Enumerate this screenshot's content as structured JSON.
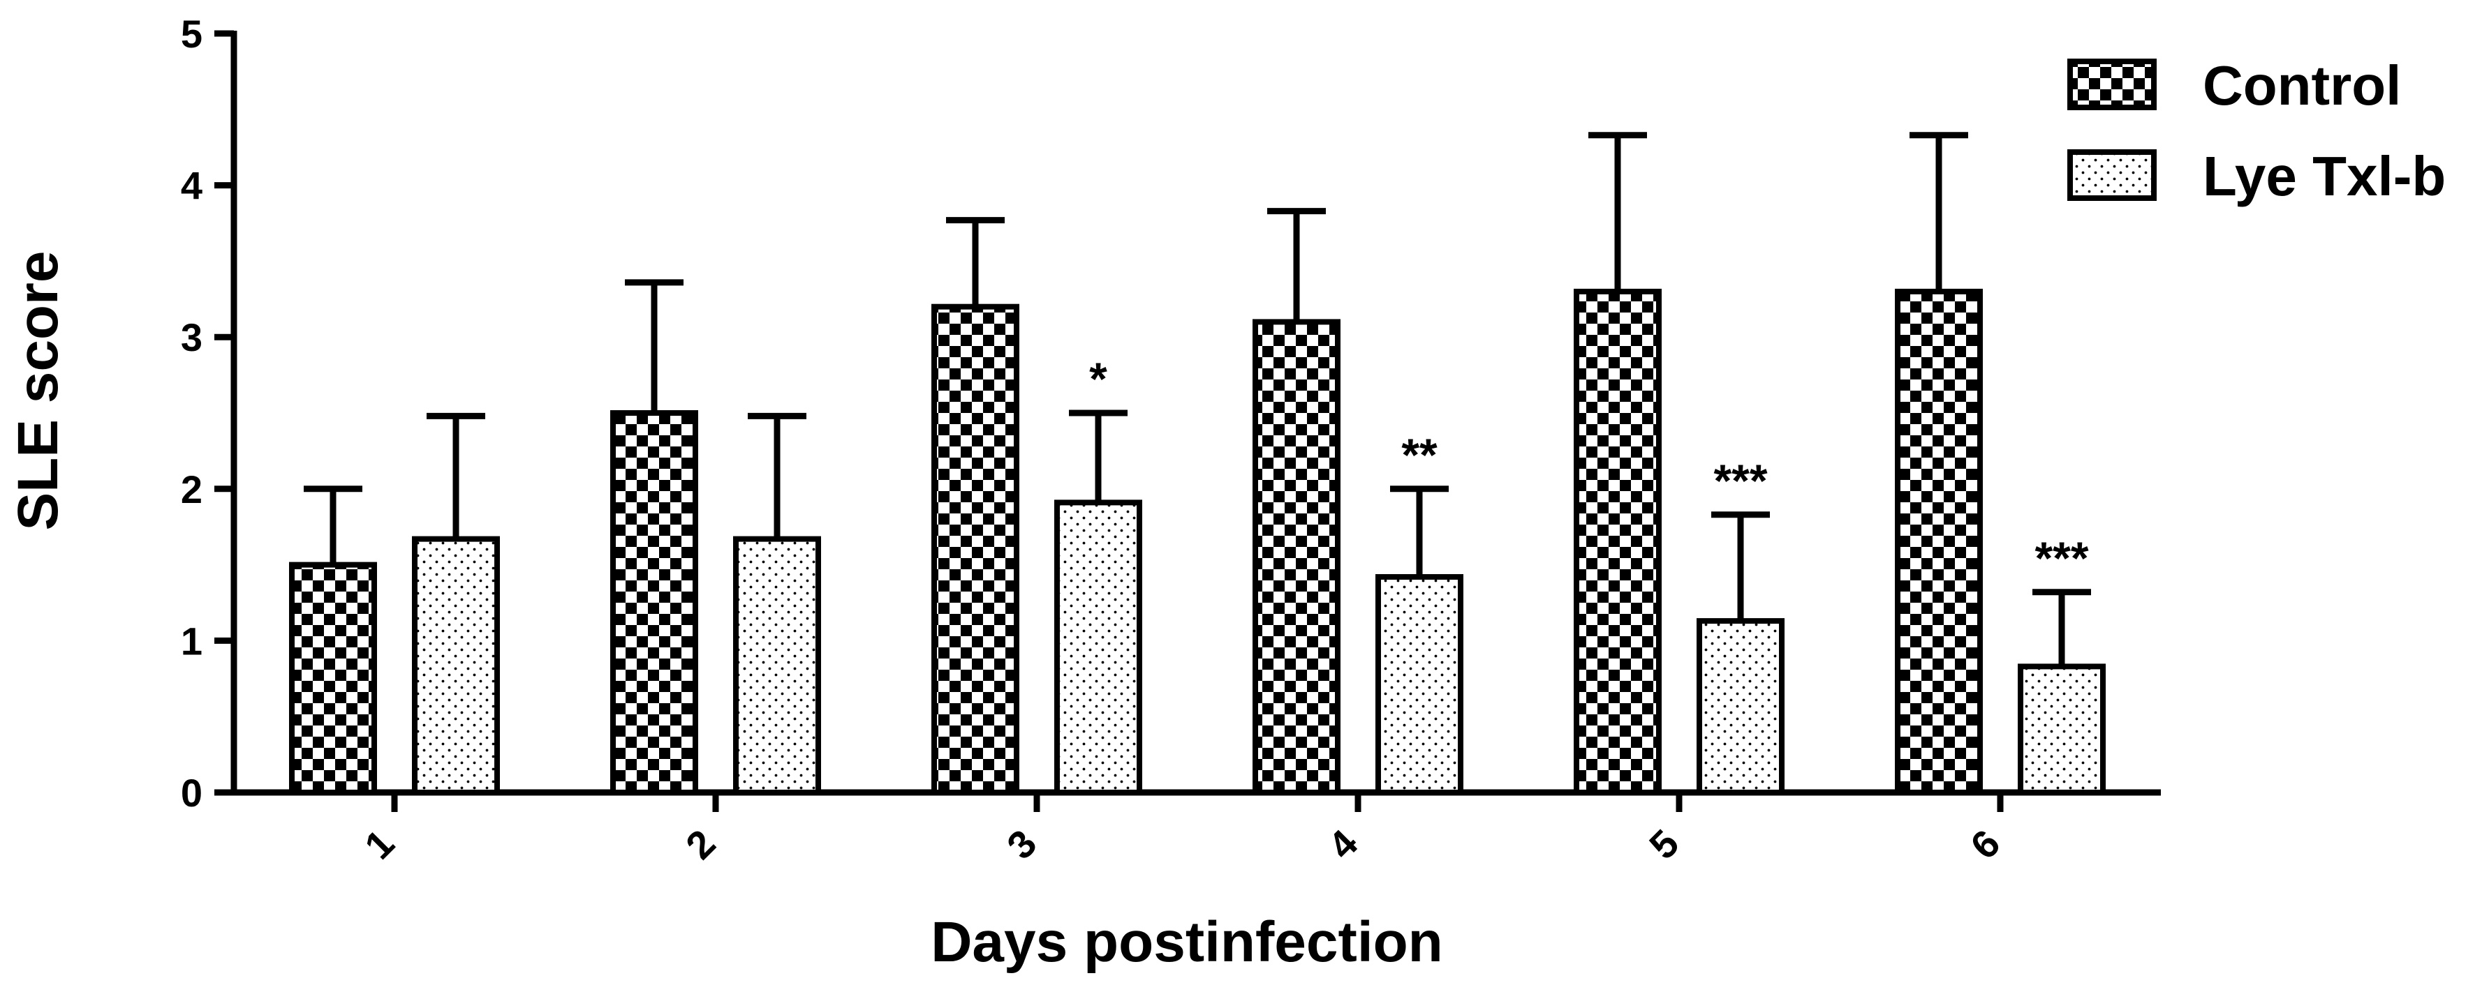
{
  "chart_data": {
    "type": "bar",
    "title": "",
    "xlabel": "Days postinfection",
    "ylabel": "SLE score",
    "ylim": [
      0,
      5
    ],
    "yticks": [
      "0",
      "1",
      "2",
      "3",
      "4",
      "5"
    ],
    "categories": [
      "1",
      "2",
      "3",
      "4",
      "5",
      "6"
    ],
    "series": [
      {
        "name": "Control",
        "pattern": "checkerboard",
        "values": [
          1.5,
          2.5,
          3.2,
          3.1,
          3.3,
          3.3
        ],
        "errors": [
          0.5,
          0.86,
          0.57,
          0.73,
          1.03,
          1.03
        ],
        "significance": [
          "",
          "",
          "",
          "",
          "",
          ""
        ]
      },
      {
        "name": "Lye Txl-b",
        "pattern": "dotted",
        "values": [
          1.67,
          1.67,
          1.91,
          1.42,
          1.13,
          0.83
        ],
        "errors": [
          0.81,
          0.81,
          0.59,
          0.58,
          0.7,
          0.49
        ],
        "significance": [
          "",
          "",
          "*",
          "**",
          "***",
          "***"
        ]
      }
    ],
    "legend_position": "top-right",
    "grid": false
  },
  "colors": {
    "ink": "#000000",
    "background": "#ffffff"
  }
}
